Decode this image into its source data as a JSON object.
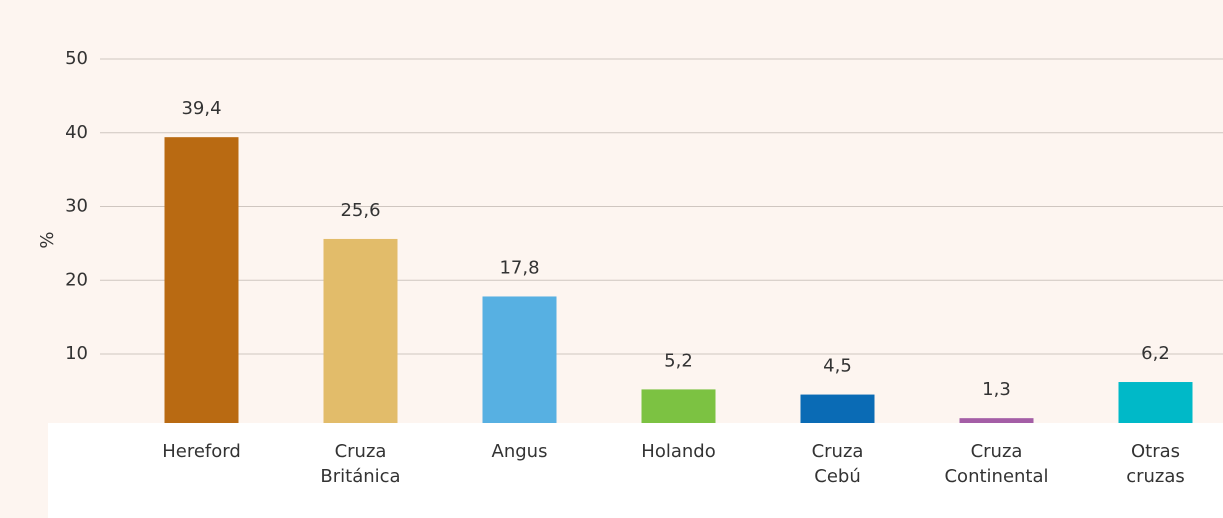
{
  "chart_data": {
    "type": "bar",
    "y_label": "%",
    "categories": [
      "Hereford",
      "Cruza Británica",
      "Angus",
      "Holando",
      "Cruza Cebú",
      "Cruza Continental",
      "Otras cruzas"
    ],
    "values": [
      39.4,
      25.6,
      17.8,
      5.2,
      4.5,
      1.3,
      6.2
    ],
    "value_labels": [
      "39,4",
      "25,6",
      "17,8",
      "5,2",
      "4,5",
      "1,3",
      "6,2"
    ],
    "colors": [
      "#b96a12",
      "#e2bc6a",
      "#57b0e2",
      "#7cc242",
      "#0a6bb5",
      "#a45ea6",
      "#00b9c8"
    ],
    "ylim": [
      0,
      50
    ],
    "yticks": [
      10,
      20,
      30,
      40,
      50
    ],
    "grid": true
  }
}
